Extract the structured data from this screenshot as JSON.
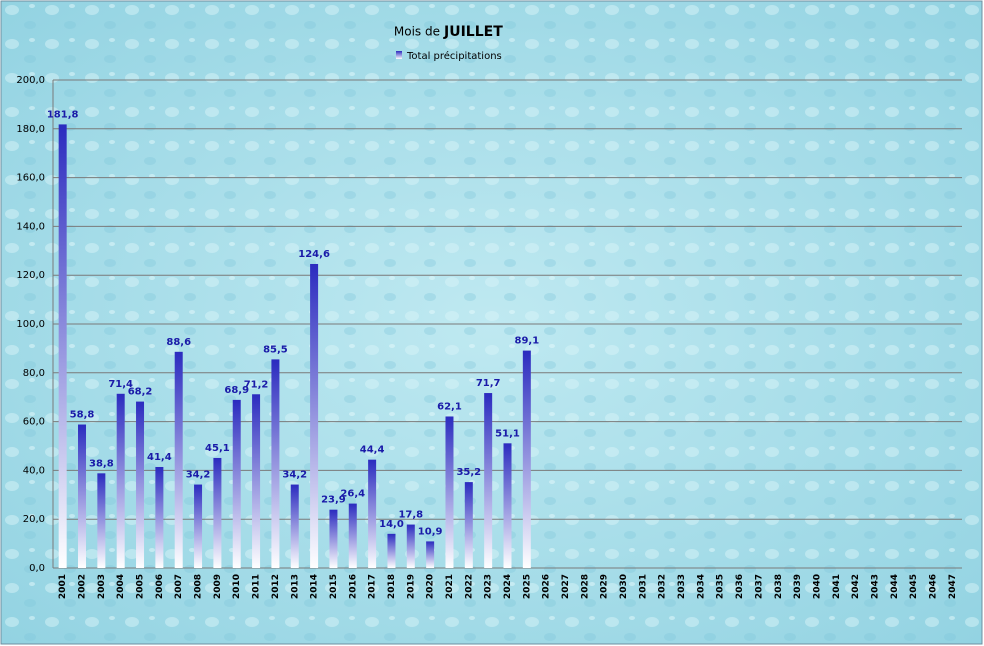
{
  "chart_data": {
    "type": "bar",
    "title": {
      "prefix": "Mois de",
      "month": "JUILLET"
    },
    "categories": [
      "2001",
      "2002",
      "2003",
      "2004",
      "2005",
      "2006",
      "2007",
      "2008",
      "2009",
      "2010",
      "2011",
      "2012",
      "2013",
      "2014",
      "2015",
      "2016",
      "2017",
      "2018",
      "2019",
      "2020",
      "2021",
      "2022",
      "2023",
      "2024",
      "2025",
      "2026",
      "2027",
      "2028",
      "2029",
      "2030",
      "2031",
      "2032",
      "2033",
      "2034",
      "2035",
      "2036",
      "2037",
      "2038",
      "2039",
      "2040",
      "2041",
      "2042",
      "2043",
      "2044",
      "2045",
      "2046",
      "2047"
    ],
    "series": [
      {
        "name": "Total précipitations",
        "color": "#2b2bbf",
        "values": [
          181.8,
          58.8,
          38.8,
          71.4,
          68.2,
          41.4,
          88.6,
          34.2,
          45.1,
          68.9,
          71.2,
          85.5,
          34.2,
          124.6,
          23.9,
          26.4,
          44.4,
          14.0,
          17.8,
          10.9,
          62.1,
          35.2,
          71.7,
          51.1,
          89.1,
          null,
          null,
          null,
          null,
          null,
          null,
          null,
          null,
          null,
          null,
          null,
          null,
          null,
          null,
          null,
          null,
          null,
          null,
          null,
          null,
          null,
          null
        ],
        "value_labels": [
          "181,8",
          "58,8",
          "38,8",
          "71,4",
          "68,2",
          "41,4",
          "88,6",
          "34,2",
          "45,1",
          "68,9",
          "71,2",
          "85,5",
          "34,2",
          "124,6",
          "23,9",
          "26,4",
          "44,4",
          "14,0",
          "17,8",
          "10,9",
          "62,1",
          "35,2",
          "71,7",
          "51,1",
          "89,1",
          null,
          null,
          null,
          null,
          null,
          null,
          null,
          null,
          null,
          null,
          null,
          null,
          null,
          null,
          null,
          null,
          null,
          null,
          null,
          null,
          null,
          null
        ]
      }
    ],
    "ylim": [
      0,
      200
    ],
    "yticks": [
      {
        "value": 0,
        "label": "0,0"
      },
      {
        "value": 20,
        "label": "20,0"
      },
      {
        "value": 40,
        "label": "40,0"
      },
      {
        "value": 60,
        "label": "60,0"
      },
      {
        "value": 80,
        "label": "80,0"
      },
      {
        "value": 100,
        "label": "100,0"
      },
      {
        "value": 120,
        "label": "120,0"
      },
      {
        "value": 140,
        "label": "140,0"
      },
      {
        "value": 160,
        "label": "160,0"
      },
      {
        "value": 180,
        "label": "180,0"
      },
      {
        "value": 200,
        "label": "200,0"
      }
    ],
    "grid": true,
    "legend": "top"
  }
}
